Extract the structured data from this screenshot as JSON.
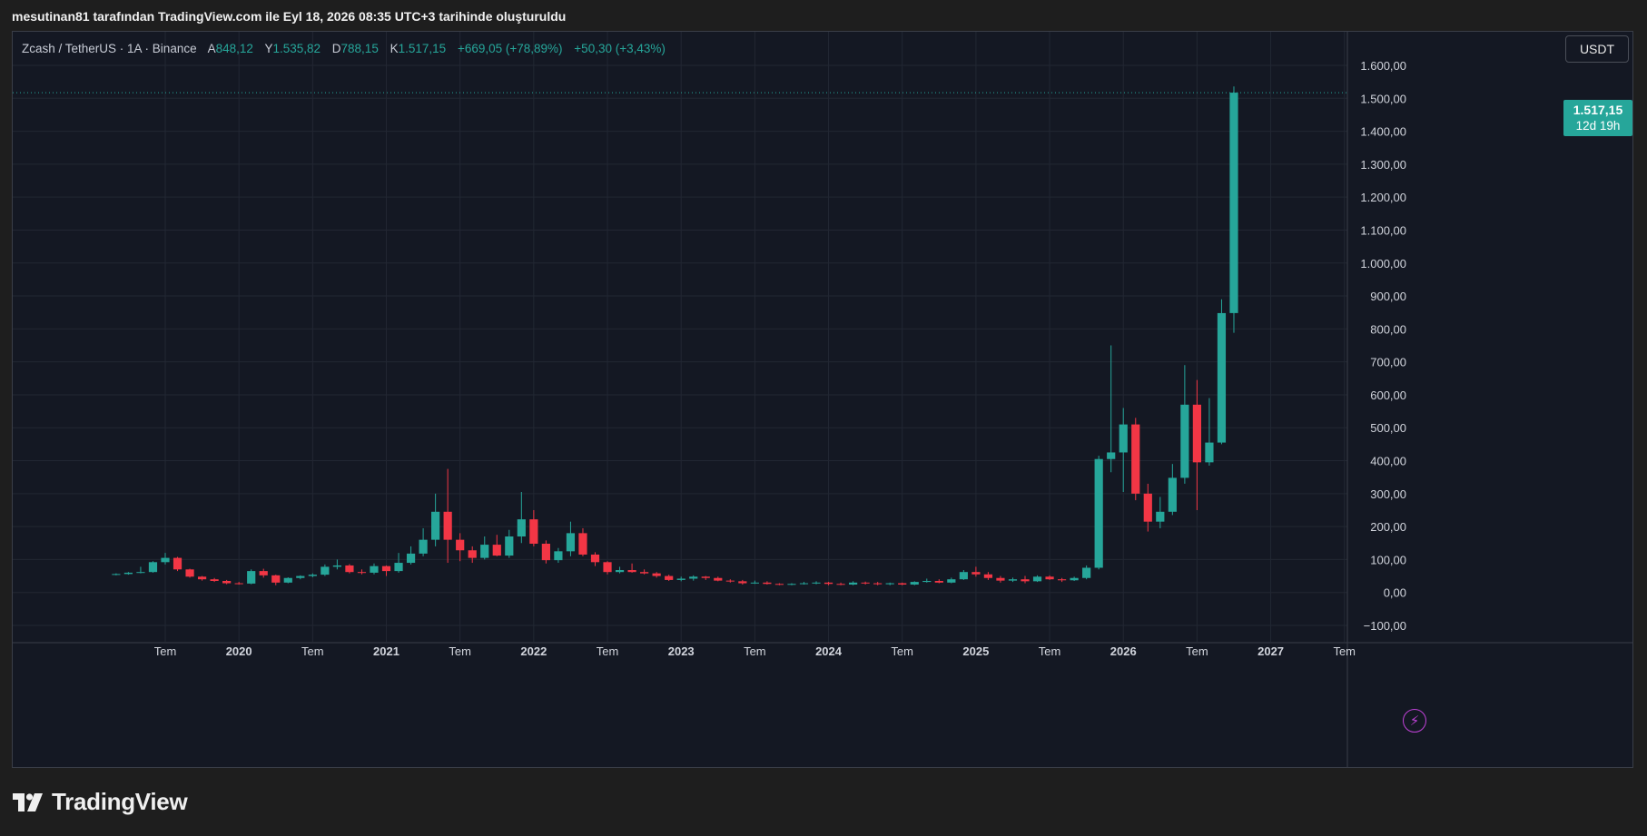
{
  "header": {
    "text": "mesutinan81 tarafından TradingView.com ile Eyl 18, 2026 08:35 UTC+3 tarihinde oluşturuldu"
  },
  "legend": {
    "symbol": "Zcash / TetherUS · 1A · Binance",
    "open_label": "A",
    "open": "848,12",
    "high_label": "Y",
    "high": "1.535,82",
    "low_label": "D",
    "low": "788,15",
    "close_label": "K",
    "close": "1.517,15",
    "change": "+669,05 (+78,89%)",
    "volume": "+50,30 (+3,43%)"
  },
  "currency_button": "USDT",
  "price_tag": {
    "price": "1.517,15",
    "countdown": "12d 19h"
  },
  "footer": {
    "logo_text": "TradingView"
  },
  "colors": {
    "up": "#26a69a",
    "down": "#f23645",
    "background": "#141823",
    "grid": "#222733",
    "axis_text": "#d1d4dc"
  },
  "icons": {
    "replay": "lightning-icon",
    "logo": "tradingview-logo-icon"
  },
  "chart_data": {
    "type": "candlestick",
    "interval": "1A",
    "y_range": [
      -100,
      1600
    ],
    "y_ticks": [
      {
        "v": 1600,
        "label": "1.600,00"
      },
      {
        "v": 1500,
        "label": "1.500,00"
      },
      {
        "v": 1400,
        "label": "1.400,00"
      },
      {
        "v": 1300,
        "label": "1.300,00"
      },
      {
        "v": 1200,
        "label": "1.200,00"
      },
      {
        "v": 1100,
        "label": "1.100,00"
      },
      {
        "v": 1000,
        "label": "1.000,00"
      },
      {
        "v": 900,
        "label": "900,00"
      },
      {
        "v": 800,
        "label": "800,00"
      },
      {
        "v": 700,
        "label": "700,00"
      },
      {
        "v": 600,
        "label": "600,00"
      },
      {
        "v": 500,
        "label": "500,00"
      },
      {
        "v": 400,
        "label": "400,00"
      },
      {
        "v": 300,
        "label": "300,00"
      },
      {
        "v": 200,
        "label": "200,00"
      },
      {
        "v": 100,
        "label": "100,00"
      },
      {
        "v": 0,
        "label": "0,00"
      },
      {
        "v": -100,
        "label": "−100,00"
      }
    ],
    "x_ticks": [
      {
        "date": "2019-07",
        "label": "Tem",
        "bold": false
      },
      {
        "date": "2020-01",
        "label": "2020",
        "bold": true
      },
      {
        "date": "2020-07",
        "label": "Tem",
        "bold": false
      },
      {
        "date": "2021-01",
        "label": "2021",
        "bold": true
      },
      {
        "date": "2021-07",
        "label": "Tem",
        "bold": false
      },
      {
        "date": "2022-01",
        "label": "2022",
        "bold": true
      },
      {
        "date": "2022-07",
        "label": "Tem",
        "bold": false
      },
      {
        "date": "2023-01",
        "label": "2023",
        "bold": true
      },
      {
        "date": "2023-07",
        "label": "Tem",
        "bold": false
      },
      {
        "date": "2024-01",
        "label": "2024",
        "bold": true
      },
      {
        "date": "2024-07",
        "label": "Tem",
        "bold": false
      },
      {
        "date": "2025-01",
        "label": "2025",
        "bold": true
      },
      {
        "date": "2025-07",
        "label": "Tem",
        "bold": false
      },
      {
        "date": "2026-01",
        "label": "2026",
        "bold": true
      },
      {
        "date": "2026-07",
        "label": "Tem",
        "bold": false
      },
      {
        "date": "2027-01",
        "label": "2027",
        "bold": true
      },
      {
        "date": "2027-07",
        "label": "Tem",
        "bold": false
      }
    ],
    "last_price": 1517.15,
    "candles": [
      {
        "date": "2019-03",
        "o": 55,
        "h": 58,
        "l": 52,
        "c": 56
      },
      {
        "date": "2019-04",
        "o": 56,
        "h": 62,
        "l": 54,
        "c": 60
      },
      {
        "date": "2019-05",
        "o": 60,
        "h": 78,
        "l": 58,
        "c": 62
      },
      {
        "date": "2019-06",
        "o": 62,
        "h": 95,
        "l": 60,
        "c": 92
      },
      {
        "date": "2019-07",
        "o": 92,
        "h": 120,
        "l": 85,
        "c": 105
      },
      {
        "date": "2019-08",
        "o": 105,
        "h": 108,
        "l": 65,
        "c": 70
      },
      {
        "date": "2019-09",
        "o": 70,
        "h": 72,
        "l": 45,
        "c": 48
      },
      {
        "date": "2019-10",
        "o": 48,
        "h": 50,
        "l": 36,
        "c": 40
      },
      {
        "date": "2019-11",
        "o": 40,
        "h": 44,
        "l": 32,
        "c": 35
      },
      {
        "date": "2019-12",
        "o": 35,
        "h": 38,
        "l": 25,
        "c": 28
      },
      {
        "date": "2020-01",
        "o": 28,
        "h": 32,
        "l": 24,
        "c": 27
      },
      {
        "date": "2020-02",
        "o": 27,
        "h": 70,
        "l": 25,
        "c": 65
      },
      {
        "date": "2020-03",
        "o": 65,
        "h": 72,
        "l": 45,
        "c": 52
      },
      {
        "date": "2020-04",
        "o": 52,
        "h": 54,
        "l": 22,
        "c": 30
      },
      {
        "date": "2020-05",
        "o": 30,
        "h": 46,
        "l": 28,
        "c": 44
      },
      {
        "date": "2020-06",
        "o": 44,
        "h": 52,
        "l": 40,
        "c": 50
      },
      {
        "date": "2020-07",
        "o": 50,
        "h": 58,
        "l": 46,
        "c": 54
      },
      {
        "date": "2020-08",
        "o": 54,
        "h": 85,
        "l": 50,
        "c": 78
      },
      {
        "date": "2020-09",
        "o": 78,
        "h": 100,
        "l": 70,
        "c": 82
      },
      {
        "date": "2020-10",
        "o": 82,
        "h": 86,
        "l": 58,
        "c": 62
      },
      {
        "date": "2020-11",
        "o": 62,
        "h": 70,
        "l": 55,
        "c": 60
      },
      {
        "date": "2020-12",
        "o": 60,
        "h": 88,
        "l": 55,
        "c": 80
      },
      {
        "date": "2021-01",
        "o": 80,
        "h": 82,
        "l": 50,
        "c": 65
      },
      {
        "date": "2021-02",
        "o": 65,
        "h": 120,
        "l": 60,
        "c": 90
      },
      {
        "date": "2021-03",
        "o": 90,
        "h": 140,
        "l": 85,
        "c": 118
      },
      {
        "date": "2021-04",
        "o": 118,
        "h": 195,
        "l": 110,
        "c": 160
      },
      {
        "date": "2021-05",
        "o": 160,
        "h": 300,
        "l": 140,
        "c": 245
      },
      {
        "date": "2021-06",
        "o": 245,
        "h": 375,
        "l": 90,
        "c": 160
      },
      {
        "date": "2021-07",
        "o": 160,
        "h": 180,
        "l": 95,
        "c": 128
      },
      {
        "date": "2021-08",
        "o": 128,
        "h": 140,
        "l": 90,
        "c": 105
      },
      {
        "date": "2021-09",
        "o": 105,
        "h": 170,
        "l": 100,
        "c": 145
      },
      {
        "date": "2021-10",
        "o": 145,
        "h": 175,
        "l": 110,
        "c": 112
      },
      {
        "date": "2021-11",
        "o": 112,
        "h": 190,
        "l": 105,
        "c": 170
      },
      {
        "date": "2021-12",
        "o": 170,
        "h": 305,
        "l": 150,
        "c": 222
      },
      {
        "date": "2022-01",
        "o": 222,
        "h": 250,
        "l": 140,
        "c": 148
      },
      {
        "date": "2022-02",
        "o": 148,
        "h": 158,
        "l": 88,
        "c": 98
      },
      {
        "date": "2022-03",
        "o": 98,
        "h": 135,
        "l": 90,
        "c": 125
      },
      {
        "date": "2022-04",
        "o": 125,
        "h": 215,
        "l": 110,
        "c": 180
      },
      {
        "date": "2022-05",
        "o": 180,
        "h": 195,
        "l": 110,
        "c": 115
      },
      {
        "date": "2022-06",
        "o": 115,
        "h": 122,
        "l": 80,
        "c": 92
      },
      {
        "date": "2022-07",
        "o": 92,
        "h": 95,
        "l": 55,
        "c": 62
      },
      {
        "date": "2022-08",
        "o": 62,
        "h": 78,
        "l": 58,
        "c": 68
      },
      {
        "date": "2022-09",
        "o": 68,
        "h": 88,
        "l": 60,
        "c": 62
      },
      {
        "date": "2022-10",
        "o": 62,
        "h": 70,
        "l": 55,
        "c": 58
      },
      {
        "date": "2022-11",
        "o": 58,
        "h": 62,
        "l": 45,
        "c": 50
      },
      {
        "date": "2022-12",
        "o": 50,
        "h": 54,
        "l": 35,
        "c": 38
      },
      {
        "date": "2023-01",
        "o": 38,
        "h": 48,
        "l": 34,
        "c": 42
      },
      {
        "date": "2023-02",
        "o": 42,
        "h": 52,
        "l": 36,
        "c": 48
      },
      {
        "date": "2023-03",
        "o": 48,
        "h": 50,
        "l": 38,
        "c": 44
      },
      {
        "date": "2023-04",
        "o": 44,
        "h": 48,
        "l": 34,
        "c": 36
      },
      {
        "date": "2023-05",
        "o": 36,
        "h": 40,
        "l": 30,
        "c": 34
      },
      {
        "date": "2023-06",
        "o": 34,
        "h": 38,
        "l": 24,
        "c": 28
      },
      {
        "date": "2023-07",
        "o": 28,
        "h": 36,
        "l": 26,
        "c": 30
      },
      {
        "date": "2023-08",
        "o": 30,
        "h": 34,
        "l": 24,
        "c": 26
      },
      {
        "date": "2023-09",
        "o": 26,
        "h": 28,
        "l": 22,
        "c": 24
      },
      {
        "date": "2023-10",
        "o": 24,
        "h": 28,
        "l": 22,
        "c": 26
      },
      {
        "date": "2023-11",
        "o": 26,
        "h": 32,
        "l": 24,
        "c": 28
      },
      {
        "date": "2023-12",
        "o": 28,
        "h": 34,
        "l": 25,
        "c": 30
      },
      {
        "date": "2024-01",
        "o": 30,
        "h": 32,
        "l": 22,
        "c": 26
      },
      {
        "date": "2024-02",
        "o": 26,
        "h": 30,
        "l": 22,
        "c": 24
      },
      {
        "date": "2024-03",
        "o": 24,
        "h": 34,
        "l": 22,
        "c": 30
      },
      {
        "date": "2024-04",
        "o": 30,
        "h": 33,
        "l": 24,
        "c": 28
      },
      {
        "date": "2024-05",
        "o": 28,
        "h": 32,
        "l": 22,
        "c": 25
      },
      {
        "date": "2024-06",
        "o": 25,
        "h": 30,
        "l": 22,
        "c": 28
      },
      {
        "date": "2024-07",
        "o": 28,
        "h": 30,
        "l": 22,
        "c": 24
      },
      {
        "date": "2024-08",
        "o": 24,
        "h": 34,
        "l": 22,
        "c": 32
      },
      {
        "date": "2024-09",
        "o": 32,
        "h": 42,
        "l": 30,
        "c": 35
      },
      {
        "date": "2024-10",
        "o": 35,
        "h": 40,
        "l": 28,
        "c": 30
      },
      {
        "date": "2024-11",
        "o": 30,
        "h": 45,
        "l": 28,
        "c": 40
      },
      {
        "date": "2024-12",
        "o": 40,
        "h": 68,
        "l": 38,
        "c": 62
      },
      {
        "date": "2025-01",
        "o": 62,
        "h": 78,
        "l": 48,
        "c": 55
      },
      {
        "date": "2025-02",
        "o": 55,
        "h": 62,
        "l": 38,
        "c": 44
      },
      {
        "date": "2025-03",
        "o": 44,
        "h": 50,
        "l": 30,
        "c": 36
      },
      {
        "date": "2025-04",
        "o": 36,
        "h": 45,
        "l": 32,
        "c": 40
      },
      {
        "date": "2025-05",
        "o": 40,
        "h": 50,
        "l": 28,
        "c": 34
      },
      {
        "date": "2025-06",
        "o": 34,
        "h": 52,
        "l": 32,
        "c": 48
      },
      {
        "date": "2025-07",
        "o": 48,
        "h": 52,
        "l": 38,
        "c": 40
      },
      {
        "date": "2025-08",
        "o": 40,
        "h": 44,
        "l": 32,
        "c": 37
      },
      {
        "date": "2025-09",
        "o": 37,
        "h": 48,
        "l": 35,
        "c": 44
      },
      {
        "date": "2025-10",
        "o": 44,
        "h": 82,
        "l": 40,
        "c": 75
      },
      {
        "date": "2025-11",
        "o": 75,
        "h": 415,
        "l": 70,
        "c": 405
      },
      {
        "date": "2025-12",
        "o": 405,
        "h": 750,
        "l": 365,
        "c": 425
      },
      {
        "date": "2026-01",
        "o": 425,
        "h": 560,
        "l": 305,
        "c": 510
      },
      {
        "date": "2026-02",
        "o": 510,
        "h": 530,
        "l": 280,
        "c": 300
      },
      {
        "date": "2026-03",
        "o": 300,
        "h": 330,
        "l": 185,
        "c": 215
      },
      {
        "date": "2026-04",
        "o": 215,
        "h": 290,
        "l": 195,
        "c": 245
      },
      {
        "date": "2026-05",
        "o": 245,
        "h": 390,
        "l": 235,
        "c": 348
      },
      {
        "date": "2026-06",
        "o": 348,
        "h": 690,
        "l": 330,
        "c": 570
      },
      {
        "date": "2026-07",
        "o": 570,
        "h": 645,
        "l": 250,
        "c": 395
      },
      {
        "date": "2026-08",
        "o": 395,
        "h": 590,
        "l": 385,
        "c": 455
      },
      {
        "date": "2026-09",
        "o": 455,
        "h": 890,
        "l": 450,
        "c": 848
      },
      {
        "date": "2026-10",
        "o": 848.12,
        "h": 1535.82,
        "l": 788.15,
        "c": 1517.15
      }
    ]
  }
}
